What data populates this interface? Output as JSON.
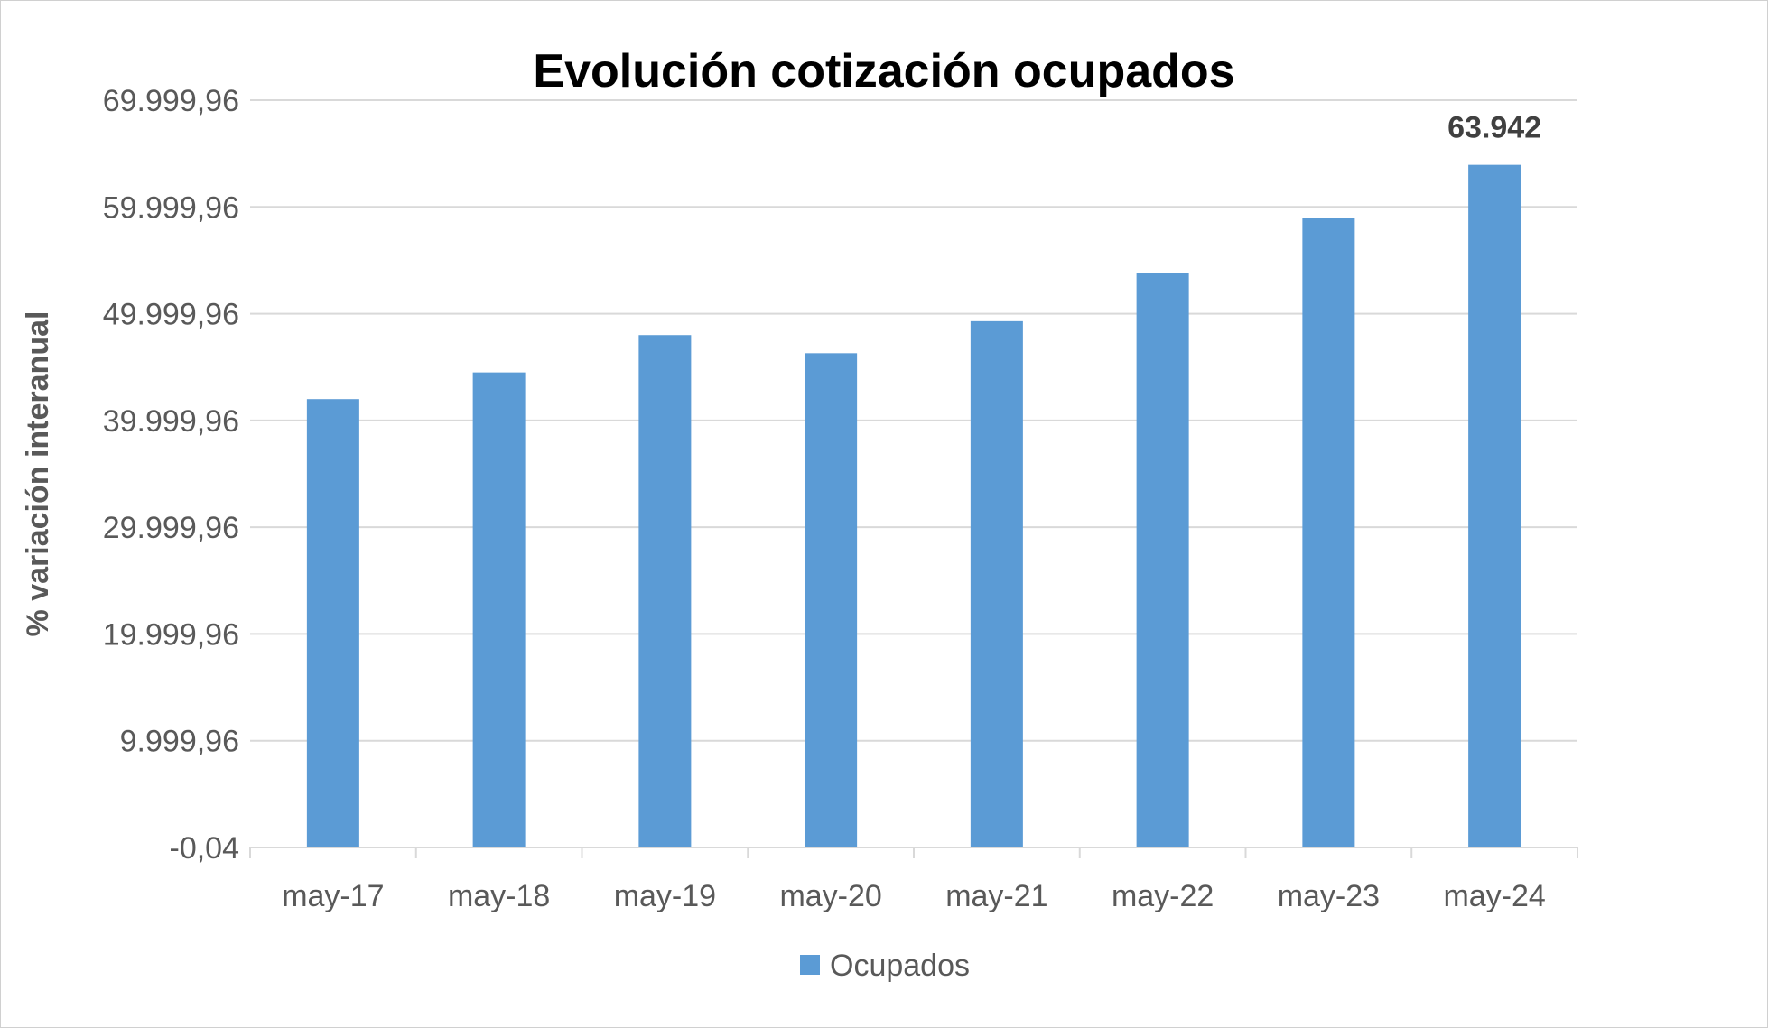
{
  "chart_data": {
    "type": "bar",
    "title": "Evolución cotización ocupados",
    "xlabel": "",
    "ylabel": "% variación interanual",
    "categories": [
      "may-17",
      "may-18",
      "may-19",
      "may-20",
      "may-21",
      "may-22",
      "may-23",
      "may-24"
    ],
    "series": [
      {
        "name": "Ocupados",
        "color": "#5b9bd5",
        "values": [
          42000,
          44500,
          48000,
          46300,
          49300,
          53800,
          59000,
          63942
        ]
      }
    ],
    "data_labels": [
      {
        "category": "may-24",
        "text": "63.942"
      }
    ],
    "ylim": [
      -0.04,
      69999.96
    ],
    "yticks": [
      -0.04,
      9999.96,
      19999.96,
      29999.96,
      39999.96,
      49999.96,
      59999.96,
      69999.96
    ],
    "ytick_labels": [
      "-0,04",
      "9.999,96",
      "19.999,96",
      "29.999,96",
      "39.999,96",
      "49.999,96",
      "59.999,96",
      "69.999,96"
    ],
    "grid": true,
    "gridline_color": "#d9d9d9",
    "legend_position": "bottom"
  }
}
